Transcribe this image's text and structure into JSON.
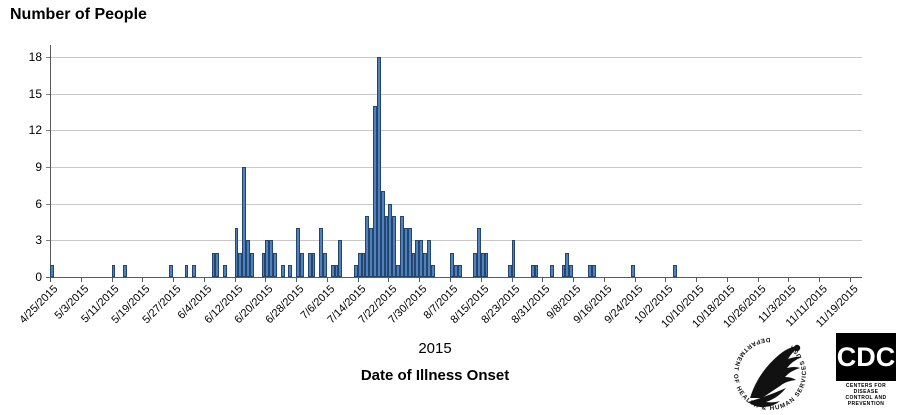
{
  "page": {
    "background": "#ffffff"
  },
  "chart_data": {
    "type": "bar",
    "title": "Number of People",
    "xlabel": "Date of Illness Onset",
    "year_label": "2015",
    "ylabel": "",
    "ylim": [
      0,
      18
    ],
    "yticks": [
      0,
      3,
      6,
      9,
      12,
      15,
      18
    ],
    "grid": true,
    "x_tick_interval_days": 8,
    "x_tick_labels": [
      "4/25/2015",
      "5/3/2015",
      "5/11/2015",
      "5/19/2015",
      "5/27/2015",
      "6/4/2015",
      "6/12/2015",
      "6/20/2015",
      "6/28/2015",
      "7/6/2015",
      "7/14/2015",
      "7/22/2015",
      "7/30/2015",
      "8/7/2015",
      "8/15/2015",
      "8/23/2015",
      "8/31/2015",
      "9/8/2015",
      "9/16/2015",
      "9/24/2015",
      "10/2/2015",
      "10/10/2015",
      "10/18/2015",
      "10/26/2015",
      "11/3/2015",
      "11/11/2015",
      "11/19/2015"
    ],
    "bar_unit": "1 day per bar",
    "points": [
      {
        "date": "4/25",
        "value": 1
      },
      {
        "date": "5/11",
        "value": 1
      },
      {
        "date": "5/14",
        "value": 1
      },
      {
        "date": "5/26",
        "value": 1
      },
      {
        "date": "5/30",
        "value": 1
      },
      {
        "date": "6/1",
        "value": 1
      },
      {
        "date": "6/6",
        "value": 2
      },
      {
        "date": "6/7",
        "value": 2
      },
      {
        "date": "6/9",
        "value": 1
      },
      {
        "date": "6/12",
        "value": 4
      },
      {
        "date": "6/13",
        "value": 2
      },
      {
        "date": "6/14",
        "value": 9
      },
      {
        "date": "6/15",
        "value": 3
      },
      {
        "date": "6/16",
        "value": 2
      },
      {
        "date": "6/19",
        "value": 2
      },
      {
        "date": "6/20",
        "value": 3
      },
      {
        "date": "6/21",
        "value": 3
      },
      {
        "date": "6/22",
        "value": 2
      },
      {
        "date": "6/24",
        "value": 1
      },
      {
        "date": "6/26",
        "value": 1
      },
      {
        "date": "6/28",
        "value": 4
      },
      {
        "date": "6/29",
        "value": 2
      },
      {
        "date": "7/1",
        "value": 2
      },
      {
        "date": "7/2",
        "value": 2
      },
      {
        "date": "7/4",
        "value": 4
      },
      {
        "date": "7/5",
        "value": 2
      },
      {
        "date": "7/7",
        "value": 1
      },
      {
        "date": "7/8",
        "value": 1
      },
      {
        "date": "7/9",
        "value": 3
      },
      {
        "date": "7/13",
        "value": 1
      },
      {
        "date": "7/14",
        "value": 2
      },
      {
        "date": "7/15",
        "value": 2
      },
      {
        "date": "7/16",
        "value": 5
      },
      {
        "date": "7/17",
        "value": 4
      },
      {
        "date": "7/18",
        "value": 14
      },
      {
        "date": "7/19",
        "value": 18
      },
      {
        "date": "7/20",
        "value": 7
      },
      {
        "date": "7/21",
        "value": 5
      },
      {
        "date": "7/22",
        "value": 6
      },
      {
        "date": "7/23",
        "value": 5
      },
      {
        "date": "7/24",
        "value": 1
      },
      {
        "date": "7/25",
        "value": 5
      },
      {
        "date": "7/26",
        "value": 4
      },
      {
        "date": "7/27",
        "value": 4
      },
      {
        "date": "7/28",
        "value": 2
      },
      {
        "date": "7/29",
        "value": 3
      },
      {
        "date": "7/30",
        "value": 3
      },
      {
        "date": "7/31",
        "value": 2
      },
      {
        "date": "8/1",
        "value": 3
      },
      {
        "date": "8/2",
        "value": 1
      },
      {
        "date": "8/7",
        "value": 2
      },
      {
        "date": "8/8",
        "value": 1
      },
      {
        "date": "8/9",
        "value": 1
      },
      {
        "date": "8/13",
        "value": 2
      },
      {
        "date": "8/14",
        "value": 4
      },
      {
        "date": "8/15",
        "value": 2
      },
      {
        "date": "8/16",
        "value": 2
      },
      {
        "date": "8/22",
        "value": 1
      },
      {
        "date": "8/23",
        "value": 3
      },
      {
        "date": "8/28",
        "value": 1
      },
      {
        "date": "8/29",
        "value": 1
      },
      {
        "date": "9/2",
        "value": 1
      },
      {
        "date": "9/5",
        "value": 1
      },
      {
        "date": "9/6",
        "value": 2
      },
      {
        "date": "9/7",
        "value": 1
      },
      {
        "date": "9/12",
        "value": 1
      },
      {
        "date": "9/13",
        "value": 1
      },
      {
        "date": "9/23",
        "value": 1
      },
      {
        "date": "10/4",
        "value": 1
      }
    ],
    "colors": {
      "bar_fill": "#4f81bd",
      "bar_border": "#24456e",
      "gridline": "#c9c9c9",
      "axis": "#5a5a5a",
      "text": "#000000"
    }
  },
  "footer_logos": {
    "hhs_ring_text": "DEPARTMENT OF HEALTH & HUMAN SERVICES USA",
    "cdc_acronym": "CDC",
    "cdc_caption_line1": "CENTERS FOR DISEASE",
    "cdc_caption_line2": "CONTROL AND PREVENTION"
  }
}
